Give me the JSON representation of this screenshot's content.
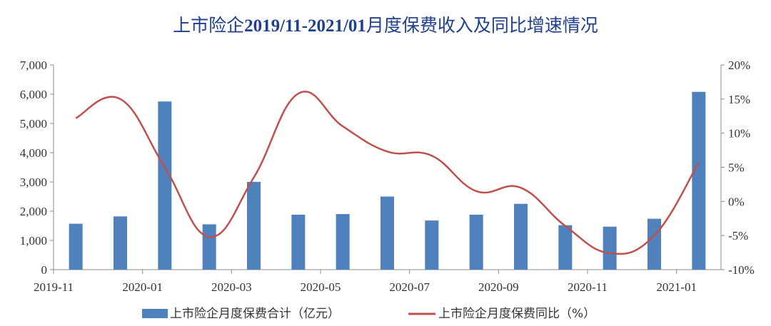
{
  "chart_data": {
    "type": "bar+line",
    "title_parts": [
      "上市险企",
      "2019/11-2021/01",
      "月度保费收入及同比增速情况"
    ],
    "categories": [
      "2019-11",
      "2019-12",
      "2020-01",
      "2020-02",
      "2020-03",
      "2020-04",
      "2020-05",
      "2020-06",
      "2020-07",
      "2020-08",
      "2020-09",
      "2020-10",
      "2020-11",
      "2020-12",
      "2021-01"
    ],
    "x_tick_labels": [
      "2019-11",
      "2020-01",
      "2020-03",
      "2020-05",
      "2020-07",
      "2020-09",
      "2020-11",
      "2021-01"
    ],
    "series": [
      {
        "name": "上市险企月度保费合计（亿元）",
        "type": "bar",
        "axis": "left",
        "color": "#4F81BD",
        "values": [
          1570,
          1820,
          5750,
          1550,
          3000,
          1880,
          1900,
          2500,
          1680,
          1880,
          2250,
          1520,
          1470,
          1740,
          6080
        ]
      },
      {
        "name": "上市险企月度保费同比（%）",
        "type": "line",
        "axis": "right",
        "color": "#C0504D",
        "values": [
          12.2,
          15.0,
          5.0,
          -5.2,
          3.5,
          15.8,
          11.0,
          7.3,
          6.7,
          1.5,
          2.0,
          -3.6,
          -7.6,
          -5.0,
          5.7
        ]
      }
    ],
    "y_left": {
      "min": 0,
      "max": 7000,
      "step": 1000,
      "tick_labels": [
        "0",
        "1,000",
        "2,000",
        "3,000",
        "4,000",
        "5,000",
        "6,000",
        "7,000"
      ]
    },
    "y_right": {
      "min": -10,
      "max": 20,
      "step": 5,
      "tick_labels": [
        "-10%",
        "-5%",
        "0%",
        "5%",
        "10%",
        "15%",
        "20%"
      ]
    },
    "grid": false,
    "legend_position": "bottom"
  }
}
